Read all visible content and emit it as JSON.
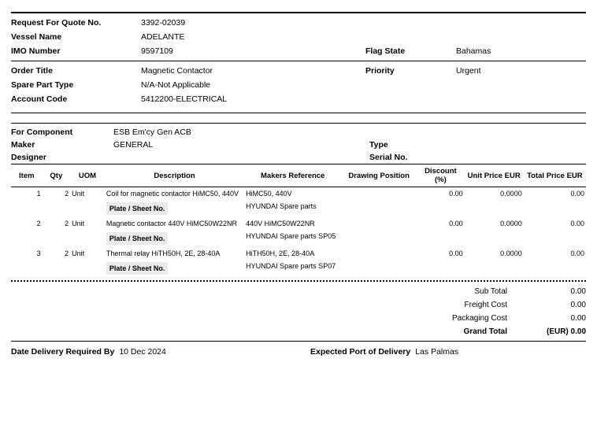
{
  "header": {
    "rfq_no_label": "Request For Quote No.",
    "rfq_no": "3392-02039",
    "vessel_label": "Vessel Name",
    "vessel": "ADELANTE",
    "imo_label": "IMO Number",
    "imo": "9597109",
    "flag_label": "Flag State",
    "flag": "Bahamas",
    "order_title_label": "Order Title",
    "order_title": "Magnetic Contactor",
    "priority_label": "Priority",
    "priority": "Urgent",
    "spare_label": "Spare Part Type",
    "spare": "N/A-Not Applicable",
    "account_label": "Account Code",
    "account": "5412200-ELECTRICAL"
  },
  "component": {
    "for_label": "For Component",
    "for": "ESB Em'cy Gen ACB",
    "maker_label": "Maker",
    "maker": "GENERAL",
    "type_label": "Type",
    "type": "",
    "designer_label": "Designer",
    "designer": "",
    "serial_label": "Serial No.",
    "serial": ""
  },
  "table": {
    "columns": {
      "item": "Item",
      "qty": "Qty",
      "uom": "UOM",
      "desc": "Description",
      "makers": "Makers Reference",
      "drawing": "Drawing Position",
      "discount": "Discount (%)",
      "unit": "Unit Price EUR",
      "total": "Total Price EUR"
    },
    "plate_label": "Plate / Sheet No.",
    "rows": [
      {
        "item": "1",
        "qty": "2",
        "uom": "Unit",
        "desc": "Coil for magnetic contactor HiMC50, 440V",
        "makers": "HiMC50, 440V",
        "drawing": "",
        "discount": "0.00",
        "unit": "0.0000",
        "total": "0.00",
        "plate": "HYUNDAI Spare parts"
      },
      {
        "item": "2",
        "qty": "2",
        "uom": "Unit",
        "desc": "Magnetic contactor 440V HiMC50W22NR",
        "makers": "440V HiMC50W22NR",
        "drawing": "",
        "discount": "0.00",
        "unit": "0.0000",
        "total": "0.00",
        "plate": "HYUNDAI Spare parts SP05"
      },
      {
        "item": "3",
        "qty": "2",
        "uom": "Unit",
        "desc": "Thermal relay HiTH50H, 2E, 28-40A",
        "makers": "HiTH50H, 2E, 28-40A",
        "drawing": "",
        "discount": "0.00",
        "unit": "0.0000",
        "total": "0.00",
        "plate": "HYUNDAI Spare parts SP07"
      }
    ]
  },
  "totals": {
    "sub_label": "Sub Total",
    "sub": "0.00",
    "freight_label": "Freight Cost",
    "freight": "0.00",
    "pack_label": "Packaging Cost",
    "pack": "0.00",
    "grand_label": "Grand Total",
    "grand": "(EUR) 0.00"
  },
  "footer": {
    "date_label": "Date Delivery Required By",
    "date": "10 Dec 2024",
    "port_label": "Expected Port of Delivery",
    "port": "Las Palmas"
  },
  "colors": {
    "bg": "#ffffff",
    "text": "#000000",
    "shade": "#eaeaea"
  }
}
